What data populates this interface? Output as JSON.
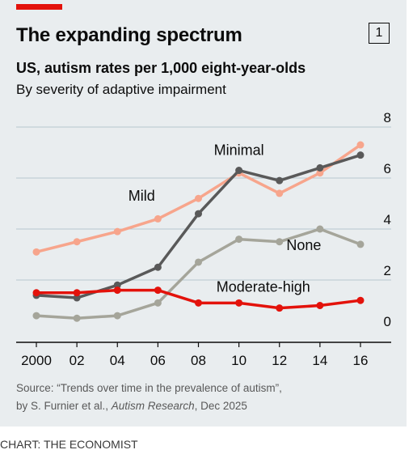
{
  "header": {
    "title": "The expanding spectrum",
    "chart_number": "1",
    "subtitle": "US, autism rates per 1,000 eight-year-olds",
    "subsubtitle": "By severity of adaptive impairment"
  },
  "colors": {
    "background": "#e9edef",
    "accent_red": "#e3120b",
    "mild": "#f7a58c",
    "minimal": "#595959",
    "none": "#a5a59a",
    "moderate_high": "#e3120b"
  },
  "chart_data": {
    "type": "line",
    "x": [
      2000,
      2002,
      2004,
      2006,
      2008,
      2010,
      2012,
      2014,
      2016
    ],
    "x_tick_labels": [
      "2000",
      "02",
      "04",
      "06",
      "08",
      "10",
      "12",
      "14",
      "16"
    ],
    "y_ticks": [
      "0",
      "2",
      "4",
      "6",
      "8"
    ],
    "ylim": [
      0,
      8
    ],
    "ylabel_position": "right",
    "grid": true,
    "legend": "direct labels",
    "series": [
      {
        "name": "Mild",
        "values": [
          3.1,
          3.5,
          3.9,
          4.4,
          5.2,
          6.2,
          5.4,
          6.2,
          7.3
        ]
      },
      {
        "name": "Minimal",
        "values": [
          1.4,
          1.3,
          1.8,
          2.5,
          4.6,
          6.3,
          5.9,
          6.4,
          6.9
        ]
      },
      {
        "name": "None",
        "values": [
          0.6,
          0.5,
          0.6,
          1.1,
          2.7,
          3.6,
          3.5,
          4.0,
          3.4
        ]
      },
      {
        "name": "Moderate-high",
        "values": [
          1.5,
          1.5,
          1.6,
          1.6,
          1.1,
          1.1,
          0.9,
          1.0,
          1.2
        ]
      }
    ]
  },
  "source": {
    "prefix": "Source: “Trends over time in the prevalence of autism”,",
    "authors": "by S. Furnier et al., ",
    "journal": "Autism Research",
    "date": ", Dec 2025"
  },
  "credit": "CHART: THE ECONOMIST"
}
